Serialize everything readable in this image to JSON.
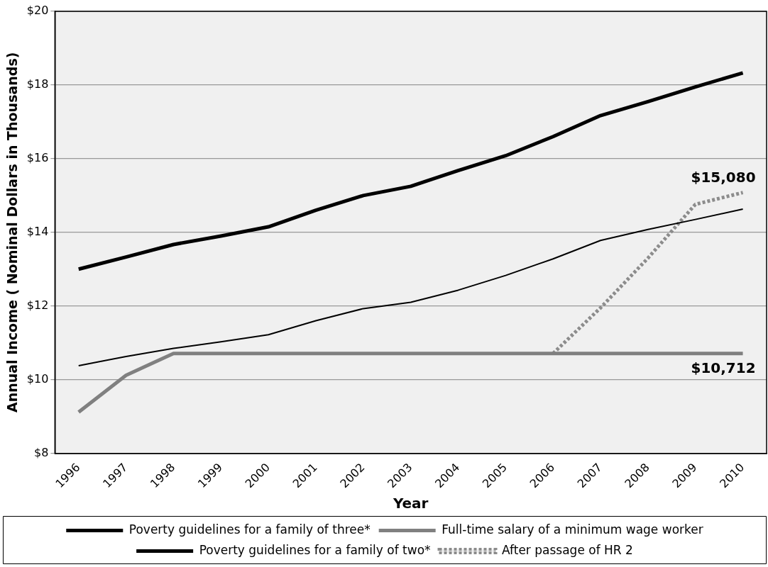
{
  "chart_data": {
    "type": "line",
    "xlabel": "Year",
    "ylabel": "Annual Income ( Nominal Dollars in Thousands)",
    "categories": [
      "1996",
      "1997",
      "1998",
      "1999",
      "2000",
      "2001",
      "2002",
      "2003",
      "2004",
      "2005",
      "2006",
      "2007",
      "2008",
      "2009",
      "2010"
    ],
    "series": [
      {
        "name": "Poverty guidelines for a family of three*",
        "color": "#000000",
        "values": [
          13.0,
          13.33,
          13.67,
          13.9,
          14.15,
          14.6,
          15.0,
          15.25,
          15.68,
          16.08,
          16.6,
          17.17,
          17.55,
          17.95,
          18.33
        ]
      },
      {
        "name": "Full-time salary of a minimum wage worker",
        "color": "#808080",
        "values": [
          9.12,
          10.12,
          10.712,
          10.712,
          10.712,
          10.712,
          10.712,
          10.712,
          10.712,
          10.712,
          10.712,
          10.712,
          10.712,
          10.712,
          10.712
        ]
      },
      {
        "name": "Poverty guidelines for a family of two*",
        "color": "#000000",
        "values": [
          10.38,
          10.63,
          10.85,
          11.03,
          11.22,
          11.6,
          11.93,
          12.1,
          12.43,
          12.83,
          13.28,
          13.78,
          14.08,
          14.35,
          14.63
        ]
      },
      {
        "name": "After passage of HR 2",
        "color": "#8c8c8c",
        "line_style": "dotted",
        "values": [
          null,
          null,
          null,
          null,
          null,
          null,
          null,
          null,
          null,
          null,
          10.712,
          11.95,
          13.3,
          14.76,
          15.08
        ]
      }
    ],
    "ylim": [
      8,
      20
    ],
    "yticks": [
      {
        "value": 8,
        "label": "$8"
      },
      {
        "value": 10,
        "label": "$10"
      },
      {
        "value": 12,
        "label": "$12"
      },
      {
        "value": 14,
        "label": "$14"
      },
      {
        "value": 16,
        "label": "$16"
      },
      {
        "value": 18,
        "label": "$18"
      },
      {
        "value": 20,
        "label": "$20"
      }
    ],
    "grid": "y",
    "legend": "bottom",
    "marker": "none",
    "line_style": "solid",
    "annotations": [
      {
        "text": "$15,080",
        "x": "2010",
        "y": 15.08
      },
      {
        "text": "$10,712",
        "x": "2010",
        "y": 10.712
      }
    ]
  }
}
